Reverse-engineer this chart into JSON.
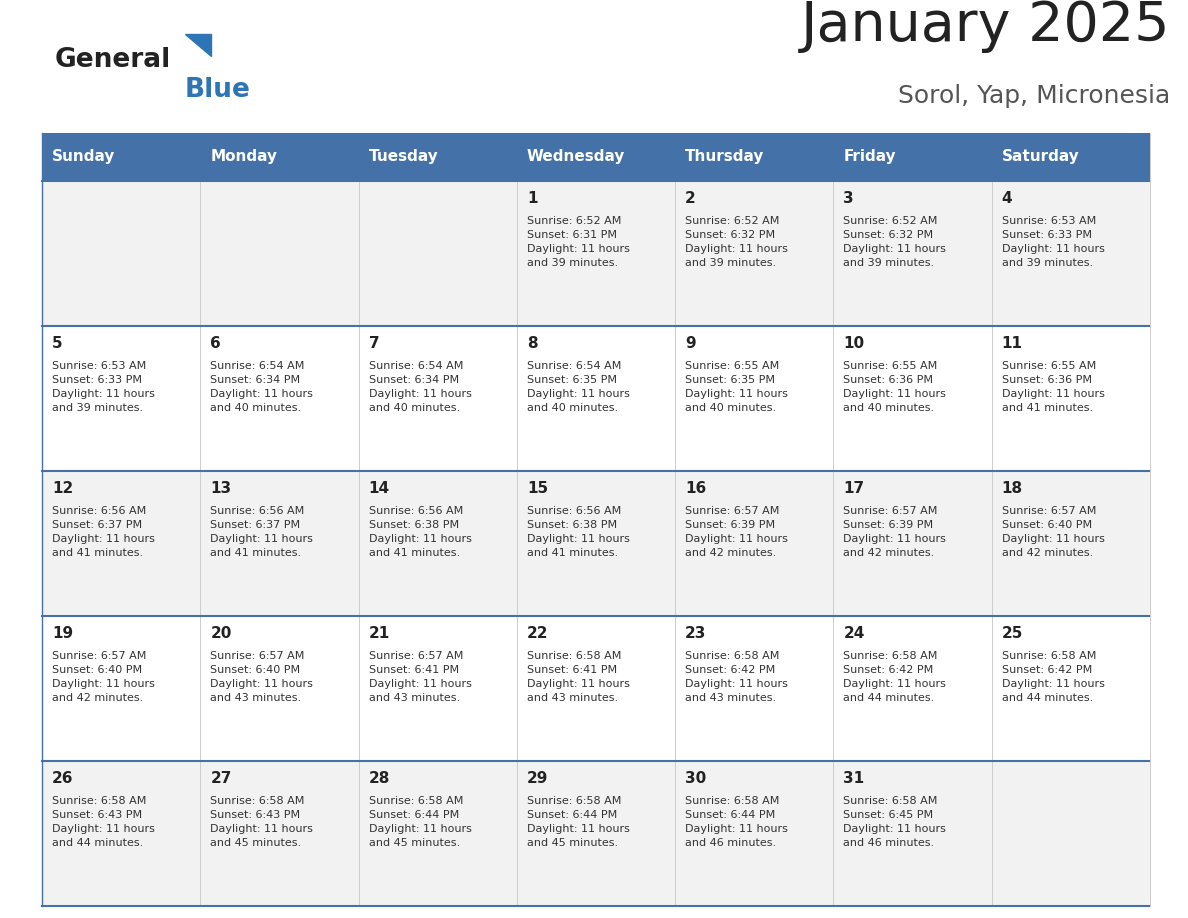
{
  "title": "January 2025",
  "subtitle": "Sorol, Yap, Micronesia",
  "header_bg_color": "#4472a8",
  "header_text_color": "#ffffff",
  "title_color": "#222222",
  "subtitle_color": "#555555",
  "day_names": [
    "Sunday",
    "Monday",
    "Tuesday",
    "Wednesday",
    "Thursday",
    "Friday",
    "Saturday"
  ],
  "row_bg_even": "#f2f2f2",
  "row_bg_odd": "#ffffff",
  "cell_border_color": "#4472a8",
  "row_divider_color": "#4472a8",
  "text_color": "#333333",
  "day_number_color": "#222222",
  "grid_line_color": "#cccccc",
  "logo_triangle_color": "#2e75b6",
  "calendar": [
    [
      {
        "day": 0,
        "info": ""
      },
      {
        "day": 0,
        "info": ""
      },
      {
        "day": 0,
        "info": ""
      },
      {
        "day": 1,
        "info": "Sunrise: 6:52 AM\nSunset: 6:31 PM\nDaylight: 11 hours\nand 39 minutes."
      },
      {
        "day": 2,
        "info": "Sunrise: 6:52 AM\nSunset: 6:32 PM\nDaylight: 11 hours\nand 39 minutes."
      },
      {
        "day": 3,
        "info": "Sunrise: 6:52 AM\nSunset: 6:32 PM\nDaylight: 11 hours\nand 39 minutes."
      },
      {
        "day": 4,
        "info": "Sunrise: 6:53 AM\nSunset: 6:33 PM\nDaylight: 11 hours\nand 39 minutes."
      }
    ],
    [
      {
        "day": 5,
        "info": "Sunrise: 6:53 AM\nSunset: 6:33 PM\nDaylight: 11 hours\nand 39 minutes."
      },
      {
        "day": 6,
        "info": "Sunrise: 6:54 AM\nSunset: 6:34 PM\nDaylight: 11 hours\nand 40 minutes."
      },
      {
        "day": 7,
        "info": "Sunrise: 6:54 AM\nSunset: 6:34 PM\nDaylight: 11 hours\nand 40 minutes."
      },
      {
        "day": 8,
        "info": "Sunrise: 6:54 AM\nSunset: 6:35 PM\nDaylight: 11 hours\nand 40 minutes."
      },
      {
        "day": 9,
        "info": "Sunrise: 6:55 AM\nSunset: 6:35 PM\nDaylight: 11 hours\nand 40 minutes."
      },
      {
        "day": 10,
        "info": "Sunrise: 6:55 AM\nSunset: 6:36 PM\nDaylight: 11 hours\nand 40 minutes."
      },
      {
        "day": 11,
        "info": "Sunrise: 6:55 AM\nSunset: 6:36 PM\nDaylight: 11 hours\nand 41 minutes."
      }
    ],
    [
      {
        "day": 12,
        "info": "Sunrise: 6:56 AM\nSunset: 6:37 PM\nDaylight: 11 hours\nand 41 minutes."
      },
      {
        "day": 13,
        "info": "Sunrise: 6:56 AM\nSunset: 6:37 PM\nDaylight: 11 hours\nand 41 minutes."
      },
      {
        "day": 14,
        "info": "Sunrise: 6:56 AM\nSunset: 6:38 PM\nDaylight: 11 hours\nand 41 minutes."
      },
      {
        "day": 15,
        "info": "Sunrise: 6:56 AM\nSunset: 6:38 PM\nDaylight: 11 hours\nand 41 minutes."
      },
      {
        "day": 16,
        "info": "Sunrise: 6:57 AM\nSunset: 6:39 PM\nDaylight: 11 hours\nand 42 minutes."
      },
      {
        "day": 17,
        "info": "Sunrise: 6:57 AM\nSunset: 6:39 PM\nDaylight: 11 hours\nand 42 minutes."
      },
      {
        "day": 18,
        "info": "Sunrise: 6:57 AM\nSunset: 6:40 PM\nDaylight: 11 hours\nand 42 minutes."
      }
    ],
    [
      {
        "day": 19,
        "info": "Sunrise: 6:57 AM\nSunset: 6:40 PM\nDaylight: 11 hours\nand 42 minutes."
      },
      {
        "day": 20,
        "info": "Sunrise: 6:57 AM\nSunset: 6:40 PM\nDaylight: 11 hours\nand 43 minutes."
      },
      {
        "day": 21,
        "info": "Sunrise: 6:57 AM\nSunset: 6:41 PM\nDaylight: 11 hours\nand 43 minutes."
      },
      {
        "day": 22,
        "info": "Sunrise: 6:58 AM\nSunset: 6:41 PM\nDaylight: 11 hours\nand 43 minutes."
      },
      {
        "day": 23,
        "info": "Sunrise: 6:58 AM\nSunset: 6:42 PM\nDaylight: 11 hours\nand 43 minutes."
      },
      {
        "day": 24,
        "info": "Sunrise: 6:58 AM\nSunset: 6:42 PM\nDaylight: 11 hours\nand 44 minutes."
      },
      {
        "day": 25,
        "info": "Sunrise: 6:58 AM\nSunset: 6:42 PM\nDaylight: 11 hours\nand 44 minutes."
      }
    ],
    [
      {
        "day": 26,
        "info": "Sunrise: 6:58 AM\nSunset: 6:43 PM\nDaylight: 11 hours\nand 44 minutes."
      },
      {
        "day": 27,
        "info": "Sunrise: 6:58 AM\nSunset: 6:43 PM\nDaylight: 11 hours\nand 45 minutes."
      },
      {
        "day": 28,
        "info": "Sunrise: 6:58 AM\nSunset: 6:44 PM\nDaylight: 11 hours\nand 45 minutes."
      },
      {
        "day": 29,
        "info": "Sunrise: 6:58 AM\nSunset: 6:44 PM\nDaylight: 11 hours\nand 45 minutes."
      },
      {
        "day": 30,
        "info": "Sunrise: 6:58 AM\nSunset: 6:44 PM\nDaylight: 11 hours\nand 46 minutes."
      },
      {
        "day": 31,
        "info": "Sunrise: 6:58 AM\nSunset: 6:45 PM\nDaylight: 11 hours\nand 46 minutes."
      },
      {
        "day": 0,
        "info": ""
      }
    ]
  ]
}
